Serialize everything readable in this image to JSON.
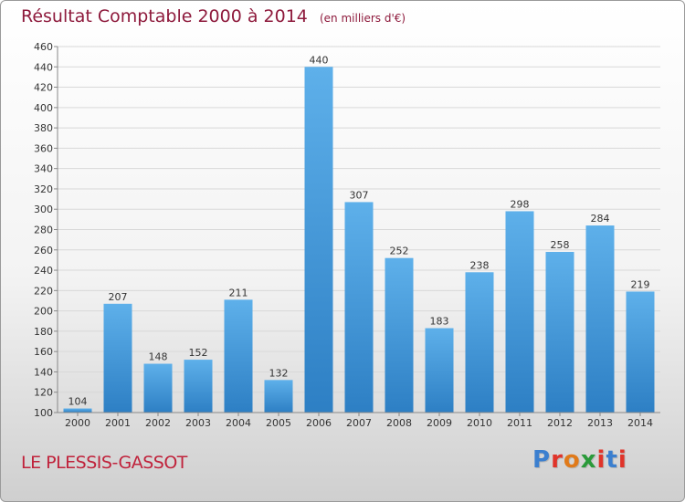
{
  "title": "Résultat Comptable 2000 à 2014",
  "unit_note": "(en milliers d'€)",
  "place_name": "LE PLESSIS-GASSOT",
  "brand": {
    "text": "Proxiti",
    "letter_colors": [
      "#3b7fcf",
      "#e0342a",
      "#e07a1a",
      "#2a9a3a",
      "#e0342a",
      "#3b7fcf",
      "#e0342a"
    ]
  },
  "colors": {
    "bar_top": "#5eb0ea",
    "bar_bottom": "#2d7fc4",
    "grid": "#d8d8d8",
    "axis_text": "#333333",
    "title": "#8e1a3c"
  },
  "chart_data": {
    "type": "bar",
    "categories": [
      "2000",
      "2001",
      "2002",
      "2003",
      "2004",
      "2005",
      "2006",
      "2007",
      "2008",
      "2009",
      "2010",
      "2011",
      "2012",
      "2013",
      "2014"
    ],
    "values": [
      104,
      207,
      148,
      152,
      211,
      132,
      440,
      307,
      252,
      183,
      238,
      298,
      258,
      284,
      219
    ],
    "ylim": [
      100,
      460
    ],
    "yticks": [
      100,
      120,
      140,
      160,
      180,
      200,
      220,
      240,
      260,
      280,
      300,
      320,
      340,
      360,
      380,
      400,
      420,
      440,
      460
    ],
    "grid": true,
    "data_labels": true
  }
}
